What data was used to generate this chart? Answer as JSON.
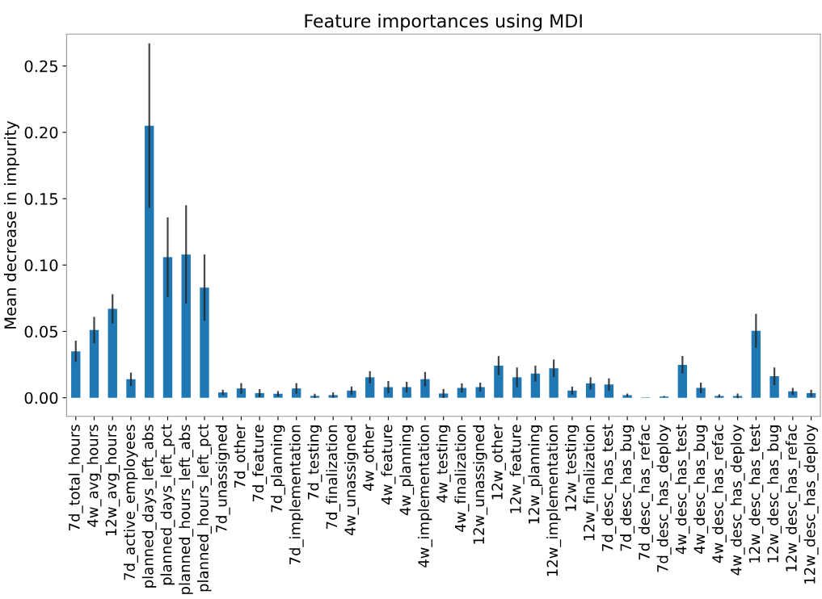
{
  "chart_data": {
    "type": "bar",
    "title": "Feature importances using MDI",
    "ylabel": "Mean decrease in impurity",
    "categories": [
      "7d_total_hours",
      "4w_avg_hours",
      "12w_avg_hours",
      "7d_active_employees",
      "planned_days_left_abs",
      "planned_days_left_pct",
      "planned_hours_left_abs",
      "planned_hours_left_pct",
      "7d_unassigned",
      "7d_other",
      "7d_feature",
      "7d_planning",
      "7d_implementation",
      "7d_testing",
      "7d_finalization",
      "4w_unassigned",
      "4w_other",
      "4w_feature",
      "4w_planning",
      "4w_implementation",
      "4w_testing",
      "4w_finalization",
      "12w_unassigned",
      "12w_other",
      "12w_feature",
      "12w_planning",
      "12w_implementation",
      "12w_testing",
      "12w_finalization",
      "7d_desc_has_test",
      "7d_desc_has_bug",
      "7d_desc_has_refac",
      "7d_desc_has_deploy",
      "4w_desc_has_test",
      "4w_desc_has_bug",
      "4w_desc_has_refac",
      "4w_desc_has_deploy",
      "12w_desc_has_test",
      "12w_desc_has_bug",
      "12w_desc_has_refac",
      "12w_desc_has_deploy"
    ],
    "values": [
      0.035,
      0.051,
      0.067,
      0.014,
      0.205,
      0.106,
      0.108,
      0.083,
      0.004,
      0.007,
      0.0035,
      0.003,
      0.007,
      0.0014,
      0.002,
      0.0054,
      0.0154,
      0.008,
      0.008,
      0.014,
      0.0032,
      0.0074,
      0.008,
      0.0242,
      0.0154,
      0.0182,
      0.0222,
      0.0054,
      0.0108,
      0.01,
      0.002,
      0.0002,
      0.0008,
      0.0248,
      0.0074,
      0.0014,
      0.0014,
      0.0504,
      0.0162,
      0.0048,
      0.0034
    ],
    "errors": [
      0.008,
      0.01,
      0.011,
      0.005,
      0.062,
      0.03,
      0.037,
      0.025,
      0.002,
      0.004,
      0.003,
      0.002,
      0.004,
      0.0016,
      0.002,
      0.003,
      0.0046,
      0.0046,
      0.004,
      0.0054,
      0.0034,
      0.0034,
      0.0034,
      0.0072,
      0.0074,
      0.006,
      0.0066,
      0.003,
      0.0046,
      0.0046,
      0.0012,
      null,
      0.0006,
      0.0066,
      0.004,
      0.0012,
      0.0018,
      0.0128,
      0.0066,
      0.0026,
      0.0026
    ],
    "color": "#1f77b4",
    "ylim": [
      -0.014,
      0.274
    ],
    "yticks": [
      {
        "value": 0,
        "label": "0.00"
      },
      {
        "value": 0.05,
        "label": "0.05"
      },
      {
        "value": 0.1,
        "label": "0.10"
      },
      {
        "value": 0.15,
        "label": "0.15"
      },
      {
        "value": 0.2,
        "label": "0.20"
      },
      {
        "value": 0.25,
        "label": "0.25"
      }
    ]
  }
}
